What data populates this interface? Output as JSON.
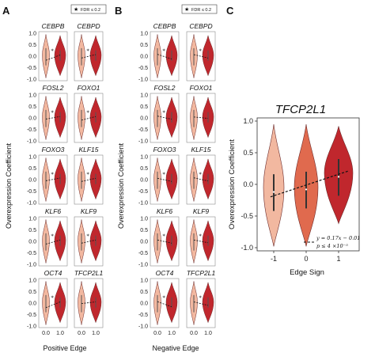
{
  "panels": {
    "A": {
      "label": "A",
      "xlabel": "Positive Edge",
      "legend": "FDR ≤ 0.2"
    },
    "B": {
      "label": "B",
      "xlabel": "Negative Edge",
      "legend": "FDR ≤ 0.2"
    },
    "C": {
      "label": "C",
      "title": "TFCP2L1",
      "xlabel": "Edge Sign",
      "equation": "y = 0.17x − 0.01",
      "pvalue": "p ≤ 4 ×10⁻⁵"
    }
  },
  "ylabel": "Overexpression Coefficient",
  "colors": {
    "light": "#f2b8a0",
    "mid": "#e06a4e",
    "dark": "#c0272d",
    "edge": "#6d2b2b"
  },
  "chart_data": [
    {
      "type": "violin",
      "panel": "A",
      "xlabel": "Positive Edge",
      "ylabel": "Overexpression Coefficient",
      "x_ticks": [
        "0.0",
        "1.0"
      ],
      "y_ticks": [
        "1.0",
        "0.5",
        "0.0",
        "-0.5",
        "-1.0"
      ],
      "ylim": [
        -1.0,
        1.0
      ],
      "facets": [
        {
          "gene": "CEBPB",
          "fdr_star": true,
          "fit_y": [
            -0.18,
            0.05
          ]
        },
        {
          "gene": "CEBPD",
          "fdr_star": true,
          "fit_y": [
            -0.08,
            0.07
          ]
        },
        {
          "gene": "FOSL2",
          "fdr_star": true,
          "fit_y": [
            -0.05,
            0.06
          ]
        },
        {
          "gene": "FOXO1",
          "fdr_star": true,
          "fit_y": [
            -0.1,
            0.06
          ]
        },
        {
          "gene": "FOXO3",
          "fdr_star": true,
          "fit_y": [
            -0.05,
            0.07
          ]
        },
        {
          "gene": "KLF15",
          "fdr_star": true,
          "fit_y": [
            -0.08,
            0.06
          ]
        },
        {
          "gene": "KLF6",
          "fdr_star": true,
          "fit_y": [
            -0.12,
            0.06
          ]
        },
        {
          "gene": "KLF9",
          "fdr_star": true,
          "fit_y": [
            -0.08,
            0.06
          ]
        },
        {
          "gene": "OCT4",
          "fdr_star": true,
          "fit_y": [
            -0.2,
            0.05
          ]
        },
        {
          "gene": "TFCP2L1",
          "fdr_star": false,
          "fit_y": [
            -0.02,
            0.05
          ]
        }
      ]
    },
    {
      "type": "violin",
      "panel": "B",
      "xlabel": "Negative Edge",
      "ylabel": "Overexpression Coefficient",
      "x_ticks": [
        "0.0",
        "1.0"
      ],
      "y_ticks": [
        "1.0",
        "0.5",
        "0.0",
        "-0.5",
        "-1.0"
      ],
      "ylim": [
        -1.0,
        1.0
      ],
      "facets": [
        {
          "gene": "CEBPB",
          "fdr_star": true,
          "fit_y": [
            0.08,
            -0.12
          ]
        },
        {
          "gene": "CEBPD",
          "fdr_star": true,
          "fit_y": [
            0.07,
            -0.08
          ]
        },
        {
          "gene": "FOSL2",
          "fdr_star": true,
          "fit_y": [
            0.08,
            -0.06
          ]
        },
        {
          "gene": "FOXO1",
          "fdr_star": false,
          "fit_y": [
            0.04,
            -0.02
          ]
        },
        {
          "gene": "FOXO3",
          "fdr_star": true,
          "fit_y": [
            0.06,
            -0.08
          ]
        },
        {
          "gene": "KLF15",
          "fdr_star": true,
          "fit_y": [
            0.08,
            -0.06
          ]
        },
        {
          "gene": "KLF6",
          "fdr_star": true,
          "fit_y": [
            0.06,
            -0.08
          ]
        },
        {
          "gene": "KLF9",
          "fdr_star": true,
          "fit_y": [
            0.06,
            -0.06
          ]
        },
        {
          "gene": "OCT4",
          "fdr_star": true,
          "fit_y": [
            0.06,
            -0.16
          ]
        },
        {
          "gene": "TFCP2L1",
          "fdr_star": true,
          "fit_y": [
            0.05,
            -0.1
          ]
        }
      ]
    },
    {
      "type": "violin",
      "panel": "C",
      "title": "TFCP2L1",
      "xlabel": "Edge Sign",
      "ylabel": "Overexpression Coefficient",
      "categories": [
        "-1",
        "0",
        "1"
      ],
      "y_ticks": [
        "1.0",
        "0.5",
        "0.0",
        "-0.5",
        "-1.0"
      ],
      "ylim": [
        -1.0,
        1.0
      ],
      "median": [
        -0.12,
        -0.08,
        0.12
      ],
      "fit": {
        "slope": 0.17,
        "intercept": -0.01
      },
      "legend": [
        "y = 0.17x − 0.01",
        "p ≤ 4 ×10⁻⁵"
      ]
    }
  ]
}
